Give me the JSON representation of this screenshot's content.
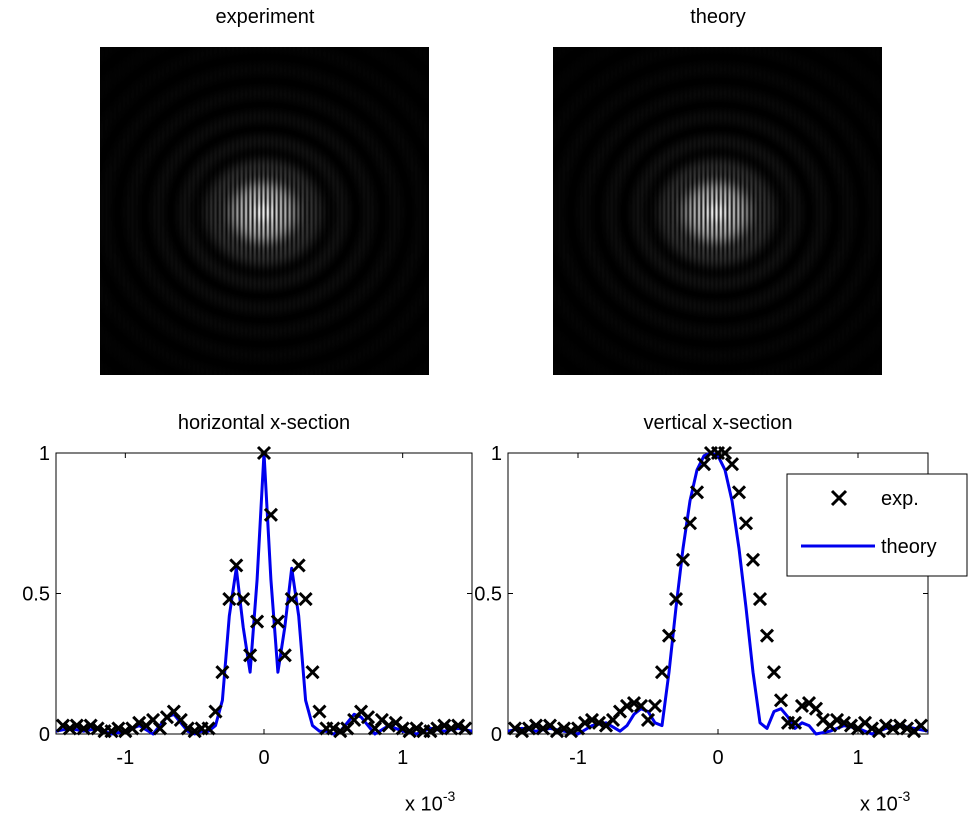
{
  "images": [
    {
      "title": "experiment"
    },
    {
      "title": "theory"
    }
  ],
  "chart_data": [
    {
      "type": "scatter+line",
      "title": "horizontal x-section",
      "xlim": [
        -0.0015,
        0.0015
      ],
      "ylim": [
        0,
        1
      ],
      "x_ticks": [
        "-1",
        "0",
        "1"
      ],
      "y_ticks": [
        "0",
        "0.5",
        "1"
      ],
      "x_multiplier": "x 10",
      "x_multiplier_exp": "-3",
      "grid": false,
      "series": [
        {
          "marker": "x",
          "color": "#000000",
          "x": [
            -0.00145,
            -0.0014,
            -0.00135,
            -0.0013,
            -0.00125,
            -0.0012,
            -0.00115,
            -0.0011,
            -0.00105,
            -0.001,
            -0.00095,
            -0.0009,
            -0.00085,
            -0.0008,
            -0.00075,
            -0.0007,
            -0.00065,
            -0.0006,
            -0.00055,
            -0.0005,
            -0.00045,
            -0.0004,
            -0.00035,
            -0.0003,
            -0.00025,
            -0.0002,
            -0.00015,
            -0.0001,
            -5e-05,
            0,
            5e-05,
            0.0001,
            0.00015,
            0.0002,
            0.00025,
            0.0003,
            0.00035,
            0.0004,
            0.00045,
            0.0005,
            0.00055,
            0.0006,
            0.00065,
            0.0007,
            0.00075,
            0.0008,
            0.00085,
            0.0009,
            0.00095,
            0.001,
            0.00105,
            0.0011,
            0.00115,
            0.0012,
            0.00125,
            0.0013,
            0.00135,
            0.0014,
            0.00145
          ],
          "y": [
            0.03,
            0.02,
            0.03,
            0.02,
            0.03,
            0.02,
            0.01,
            0.01,
            0.02,
            0.01,
            0.02,
            0.04,
            0.03,
            0.05,
            0.02,
            0.06,
            0.08,
            0.05,
            0.02,
            0.01,
            0.02,
            0.02,
            0.08,
            0.22,
            0.48,
            0.6,
            0.48,
            0.28,
            0.4,
            1.0,
            0.78,
            0.4,
            0.28,
            0.48,
            0.6,
            0.48,
            0.22,
            0.08,
            0.02,
            0.02,
            0.01,
            0.02,
            0.05,
            0.08,
            0.06,
            0.02,
            0.05,
            0.03,
            0.04,
            0.02,
            0.01,
            0.02,
            0.01,
            0.01,
            0.02,
            0.03,
            0.02,
            0.03,
            0.02
          ]
        },
        {
          "marker": "line",
          "color": "#0000ee",
          "x": [
            -0.0015,
            -0.0014,
            -0.0013,
            -0.0012,
            -0.0011,
            -0.001,
            -0.0009,
            -0.0008,
            -0.0007,
            -0.00065,
            -0.0006,
            -0.00055,
            -0.0005,
            -0.00045,
            -0.0004,
            -0.00035,
            -0.0003,
            -0.00025,
            -0.0002,
            -0.00015,
            -0.0001,
            -5e-05,
            0,
            5e-05,
            0.0001,
            0.00015,
            0.0002,
            0.00025,
            0.0003,
            0.00035,
            0.0004,
            0.00045,
            0.0005,
            0.00055,
            0.0006,
            0.00065,
            0.0007,
            0.0008,
            0.0009,
            0.001,
            0.0011,
            0.0012,
            0.0013,
            0.0014,
            0.0015
          ],
          "y": [
            0.01,
            0.02,
            0.01,
            0.02,
            0.0,
            0.01,
            0.03,
            0.0,
            0.06,
            0.07,
            0.04,
            0.01,
            0.0,
            0.01,
            0.01,
            0.03,
            0.12,
            0.42,
            0.59,
            0.38,
            0.22,
            0.55,
            1.0,
            0.55,
            0.22,
            0.38,
            0.59,
            0.42,
            0.12,
            0.03,
            0.01,
            0.01,
            0.0,
            0.01,
            0.04,
            0.07,
            0.06,
            0.0,
            0.03,
            0.01,
            0.0,
            0.02,
            0.01,
            0.02,
            0.01
          ]
        }
      ]
    },
    {
      "type": "scatter+line",
      "title": "vertical x-section",
      "xlim": [
        -0.0015,
        0.0015
      ],
      "ylim": [
        0,
        1
      ],
      "x_ticks": [
        "-1",
        "0",
        "1"
      ],
      "y_ticks": [
        "0",
        "0.5",
        "1"
      ],
      "x_multiplier": "x 10",
      "x_multiplier_exp": "-3",
      "grid": false,
      "legend": {
        "placement": "top-right",
        "entries": [
          {
            "label": "exp.",
            "marker": "x",
            "color": "#000000"
          },
          {
            "label": "theory",
            "marker": "line",
            "color": "#0000ee"
          }
        ]
      },
      "series": [
        {
          "marker": "x",
          "color": "#000000",
          "x": [
            -0.00145,
            -0.0014,
            -0.00135,
            -0.0013,
            -0.00125,
            -0.0012,
            -0.00115,
            -0.0011,
            -0.00105,
            -0.001,
            -0.00095,
            -0.0009,
            -0.00085,
            -0.0008,
            -0.00075,
            -0.0007,
            -0.00065,
            -0.0006,
            -0.00055,
            -0.0005,
            -0.00045,
            -0.0004,
            -0.00035,
            -0.0003,
            -0.00025,
            -0.0002,
            -0.00015,
            -0.0001,
            -5e-05,
            0,
            5e-05,
            0.0001,
            0.00015,
            0.0002,
            0.00025,
            0.0003,
            0.00035,
            0.0004,
            0.00045,
            0.0005,
            0.00055,
            0.0006,
            0.00065,
            0.0007,
            0.00075,
            0.0008,
            0.00085,
            0.0009,
            0.00095,
            0.001,
            0.00105,
            0.0011,
            0.00115,
            0.0012,
            0.00125,
            0.0013,
            0.00135,
            0.0014,
            0.00145
          ],
          "y": [
            0.02,
            0.01,
            0.02,
            0.03,
            0.02,
            0.03,
            0.01,
            0.02,
            0.01,
            0.02,
            0.04,
            0.05,
            0.04,
            0.03,
            0.05,
            0.08,
            0.1,
            0.11,
            0.1,
            0.05,
            0.1,
            0.22,
            0.35,
            0.48,
            0.62,
            0.75,
            0.86,
            0.96,
            1.0,
            1.0,
            1.0,
            0.96,
            0.86,
            0.75,
            0.62,
            0.48,
            0.35,
            0.22,
            0.12,
            0.04,
            0.04,
            0.1,
            0.11,
            0.09,
            0.05,
            0.03,
            0.05,
            0.04,
            0.03,
            0.02,
            0.04,
            0.02,
            0.01,
            0.03,
            0.02,
            0.03,
            0.02,
            0.01,
            0.03
          ]
        },
        {
          "marker": "line",
          "color": "#0000ee",
          "x": [
            -0.0015,
            -0.0014,
            -0.0013,
            -0.0012,
            -0.0011,
            -0.001,
            -0.0009,
            -0.0008,
            -0.0007,
            -0.00065,
            -0.0006,
            -0.00055,
            -0.0005,
            -0.00045,
            -0.0004,
            -0.00035,
            -0.0003,
            -0.00025,
            -0.0002,
            -0.00015,
            -0.0001,
            -5e-05,
            0,
            5e-05,
            0.0001,
            0.00015,
            0.0002,
            0.00025,
            0.0003,
            0.00035,
            0.0004,
            0.00045,
            0.0005,
            0.00055,
            0.0006,
            0.00065,
            0.0007,
            0.0008,
            0.0009,
            0.001,
            0.0011,
            0.0012,
            0.0013,
            0.0014,
            0.0015
          ],
          "y": [
            0.01,
            0.02,
            0.01,
            0.02,
            0.01,
            0.0,
            0.03,
            0.04,
            0.01,
            0.03,
            0.07,
            0.09,
            0.08,
            0.04,
            0.03,
            0.22,
            0.45,
            0.66,
            0.83,
            0.94,
            0.99,
            1.0,
            0.99,
            0.94,
            0.83,
            0.66,
            0.45,
            0.22,
            0.04,
            0.02,
            0.08,
            0.09,
            0.06,
            0.02,
            0.04,
            0.03,
            0.0,
            0.01,
            0.03,
            0.02,
            0.0,
            0.02,
            0.03,
            0.02,
            0.01
          ]
        }
      ]
    }
  ]
}
